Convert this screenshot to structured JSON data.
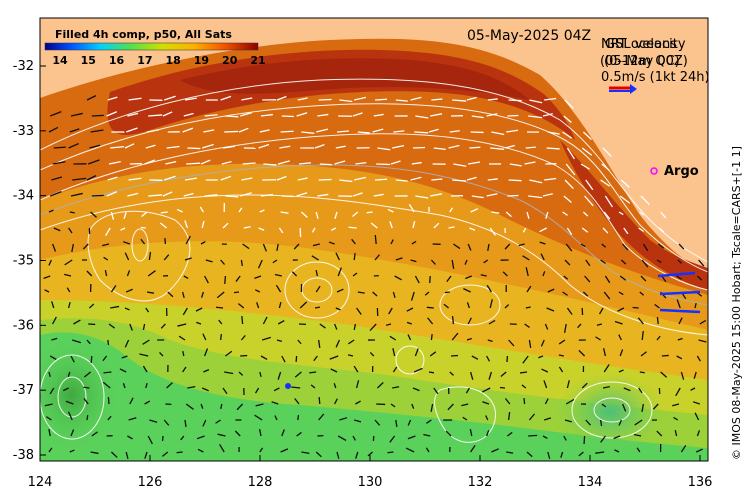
{
  "map": {
    "title_date": "05-May-2025 04Z",
    "legend_title": "Filled 4h comp, p50, All Sats",
    "colorbar_ticks": [
      "14",
      "15",
      "16",
      "17",
      "18",
      "19",
      "20",
      "21"
    ],
    "overlay_line1_a": "NRT oceans",
    "overlay_line1_b": "GSL velocity",
    "overlay_line2_a": "(05-May 00Z)",
    "overlay_line2_b": "(0-12m QC)",
    "scale_arrow_label": "0.5m/s (1kt 24h)",
    "argo_label": "Argo",
    "credit": "© IMOS 08-May-2025 15:00 Hobart; Tscale=CARS+[-1 1]",
    "lon_ticks": [
      "124",
      "126",
      "128",
      "130",
      "132",
      "134",
      "136"
    ],
    "lat_ticks": [
      "-32",
      "-33",
      "-34",
      "-35",
      "-36",
      "-37",
      "-38"
    ],
    "colors": {
      "land": "#fbc38e",
      "warm": "#c2410f",
      "cool": "#5ad15a",
      "arrow": "#ffffff",
      "argo": "#ff00ff",
      "scale_arrow_blue": "#1530ff",
      "scale_arrow_red": "#e40000"
    }
  }
}
